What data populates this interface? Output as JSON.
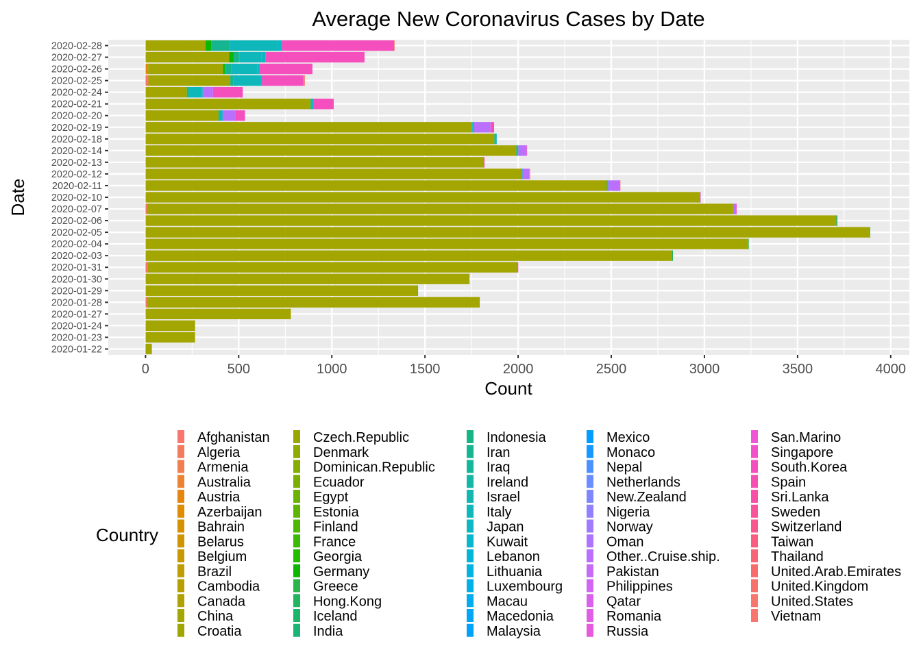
{
  "chart_data": {
    "type": "bar",
    "orientation": "horizontal",
    "stacked": true,
    "title": "Average New Coronavirus Cases by Date",
    "xlabel": "Count",
    "ylabel": "Date",
    "xlim": [
      -200,
      4100
    ],
    "xticks": [
      0,
      500,
      1000,
      1500,
      2000,
      2500,
      3000,
      3500,
      4000
    ],
    "xtick_labels": [
      "0",
      "500",
      "1000",
      "1500",
      "2000",
      "2500",
      "3000",
      "3500",
      "4000"
    ],
    "grid": true,
    "categories": [
      "2020-01-22",
      "2020-01-23",
      "2020-01-24",
      "2020-01-27",
      "2020-01-28",
      "2020-01-29",
      "2020-01-30",
      "2020-01-31",
      "2020-02-03",
      "2020-02-04",
      "2020-02-05",
      "2020-02-06",
      "2020-02-07",
      "2020-02-10",
      "2020-02-11",
      "2020-02-12",
      "2020-02-13",
      "2020-02-14",
      "2020-02-18",
      "2020-02-19",
      "2020-02-20",
      "2020-02-21",
      "2020-02-24",
      "2020-02-25",
      "2020-02-26",
      "2020-02-27",
      "2020-02-28"
    ],
    "legend": {
      "title": "Country",
      "position": "bottom",
      "columns": 5,
      "entries": [
        "Afghanistan",
        "Algeria",
        "Armenia",
        "Australia",
        "Austria",
        "Azerbaijan",
        "Bahrain",
        "Belarus",
        "Belgium",
        "Brazil",
        "Cambodia",
        "Canada",
        "China",
        "Croatia",
        "Czech.Republic",
        "Denmark",
        "Dominican.Republic",
        "Ecuador",
        "Egypt",
        "Estonia",
        "Finland",
        "France",
        "Georgia",
        "Germany",
        "Greece",
        "Hong.Kong",
        "Iceland",
        "India",
        "Indonesia",
        "Iran",
        "Iraq",
        "Ireland",
        "Israel",
        "Italy",
        "Japan",
        "Kuwait",
        "Lebanon",
        "Lithuania",
        "Luxembourg",
        "Macau",
        "Macedonia",
        "Malaysia",
        "Mexico",
        "Monaco",
        "Nepal",
        "Netherlands",
        "New.Zealand",
        "Nigeria",
        "Norway",
        "Oman",
        "Other..Cruise.ship.",
        "Pakistan",
        "Philippines",
        "Qatar",
        "Romania",
        "Russia",
        "San.Marino",
        "Singapore",
        "South.Korea",
        "Spain",
        "Sri.Lanka",
        "Sweden",
        "Switzerland",
        "Taiwan",
        "Thailand",
        "United.Arab.Emirates",
        "United.Kingdom",
        "United.States",
        "Vietnam"
      ],
      "colors": [
        "#F8766D",
        "#F47A5F",
        "#F07E51",
        "#EB8332",
        "#E5870E",
        "#DE8C00",
        "#D69100",
        "#CF9500",
        "#C79800",
        "#BF9C00",
        "#B89F00",
        "#AFA200",
        "#A3A500",
        "#A1A500",
        "#98A800",
        "#8EAB00",
        "#84AD00",
        "#79B000",
        "#6CB300",
        "#5EB500",
        "#4EB800",
        "#3ABA00",
        "#23BD00",
        "#0CB702",
        "#2BB64B",
        "#21B55D",
        "#1BB56B",
        "#18B577",
        "#16B583",
        "#15B68F",
        "#14B79A",
        "#14B7A5",
        "#12B7AF",
        "#0EB8BA",
        "#0BB8C4",
        "#07B7CE",
        "#03B6D7",
        "#00B3E0",
        "#00B0E8",
        "#00ACF0",
        "#00A7F6",
        "#00A2FB",
        "#009EFF",
        "#1698FF",
        "#4C92FF",
        "#6A8DFF",
        "#7F87FF",
        "#9180FF",
        "#A07AFF",
        "#AF74FF",
        "#BB6FFD",
        "#C66AF8",
        "#D066F3",
        "#D962ED",
        "#E15FE6",
        "#E85ADD",
        "#EE56D3",
        "#F351C9",
        "#F54FBE",
        "#F64FB2",
        "#F850A6",
        "#F9539A",
        "#F9588D",
        "#F95E81",
        "#F86575",
        "#F76B6A",
        "#F7716B",
        "#F8766D",
        "#F8766D"
      ]
    },
    "series": [
      {
        "name": "China",
        "values": [
          34,
          264,
          264,
          778,
          1783,
          1459,
          1735,
          1985,
          2824,
          3233,
          3885,
          3706,
          3146,
          2973,
          2474,
          2014,
          1810,
          1988,
          1870,
          1750,
          390,
          883,
          220,
          440,
          402,
          446,
          320
        ]
      },
      {
        "name": "South.Korea",
        "values": [
          0,
          0,
          0,
          0,
          0,
          0,
          0,
          0,
          0,
          0,
          0,
          0,
          0,
          0,
          0,
          0,
          0,
          0,
          0,
          16,
          50,
          110,
          160,
          220,
          285,
          530,
          600
        ]
      },
      {
        "name": "Italy",
        "values": [
          0,
          0,
          0,
          0,
          0,
          0,
          0,
          0,
          0,
          0,
          0,
          0,
          0,
          0,
          0,
          0,
          0,
          0,
          0,
          0,
          0,
          0,
          65,
          145,
          140,
          120,
          260
        ]
      },
      {
        "name": "Iran",
        "values": [
          0,
          0,
          0,
          0,
          0,
          0,
          0,
          0,
          0,
          0,
          0,
          0,
          0,
          0,
          0,
          0,
          0,
          0,
          0,
          0,
          0,
          0,
          10,
          15,
          35,
          30,
          100
        ]
      },
      {
        "name": "Other..Cruise.ship.",
        "values": [
          0,
          0,
          0,
          0,
          0,
          0,
          0,
          0,
          0,
          0,
          0,
          0,
          10,
          0,
          60,
          35,
          0,
          44,
          0,
          88,
          70,
          0,
          55,
          0,
          0,
          0,
          0
        ]
      },
      {
        "name": "Japan",
        "values": [
          0,
          0,
          0,
          0,
          0,
          0,
          0,
          0,
          0,
          0,
          0,
          0,
          0,
          0,
          5,
          5,
          0,
          8,
          10,
          10,
          20,
          12,
          10,
          10,
          10,
          20,
          20
        ]
      },
      {
        "name": "Germany",
        "values": [
          0,
          0,
          0,
          0,
          0,
          0,
          0,
          0,
          0,
          0,
          0,
          0,
          0,
          0,
          0,
          0,
          0,
          0,
          0,
          0,
          0,
          0,
          0,
          0,
          10,
          25,
          30
        ]
      },
      {
        "name": "Spain",
        "values": [
          0,
          0,
          0,
          0,
          0,
          0,
          0,
          0,
          0,
          0,
          0,
          0,
          0,
          0,
          0,
          0,
          0,
          0,
          0,
          0,
          0,
          0,
          0,
          0,
          0,
          3,
          2
        ]
      },
      {
        "name": "Hong.Kong",
        "values": [
          0,
          0,
          0,
          0,
          3,
          2,
          2,
          3,
          5,
          3,
          3,
          3,
          2,
          2,
          3,
          3,
          3,
          3,
          3,
          2,
          2,
          3,
          0,
          0,
          0,
          0,
          0
        ]
      },
      {
        "name": "Singapore",
        "values": [
          0,
          0,
          0,
          0,
          0,
          0,
          0,
          3,
          0,
          0,
          0,
          0,
          7,
          3,
          3,
          2,
          3,
          3,
          0,
          3,
          0,
          0,
          0,
          0,
          0,
          0,
          0
        ]
      },
      {
        "name": "Thailand",
        "values": [
          0,
          0,
          0,
          0,
          0,
          0,
          0,
          0,
          0,
          0,
          0,
          0,
          0,
          0,
          2,
          3,
          2,
          0,
          0,
          0,
          0,
          0,
          0,
          0,
          0,
          0,
          0
        ]
      },
      {
        "name": "Malaysia",
        "values": [
          0,
          0,
          0,
          0,
          0,
          0,
          0,
          0,
          0,
          0,
          0,
          3,
          0,
          0,
          0,
          0,
          0,
          0,
          0,
          0,
          0,
          0,
          0,
          0,
          0,
          0,
          0
        ]
      },
      {
        "name": "United.States",
        "values": [
          0,
          0,
          0,
          0,
          0,
          0,
          0,
          0,
          0,
          0,
          0,
          0,
          0,
          0,
          0,
          0,
          0,
          0,
          0,
          0,
          0,
          0,
          0,
          10,
          0,
          0,
          3
        ]
      },
      {
        "name": "Afghanistan",
        "values": [
          0,
          2,
          2,
          2,
          8,
          2,
          2,
          10,
          2,
          2,
          2,
          2,
          8,
          2,
          2,
          2,
          2,
          2,
          2,
          2,
          2,
          2,
          2,
          15,
          2,
          2,
          2
        ]
      },
      {
        "name": "Austria",
        "values": [
          0,
          0,
          0,
          0,
          0,
          0,
          0,
          0,
          0,
          0,
          0,
          0,
          0,
          0,
          0,
          0,
          0,
          0,
          0,
          0,
          0,
          0,
          0,
          0,
          12,
          0,
          0
        ]
      }
    ]
  }
}
